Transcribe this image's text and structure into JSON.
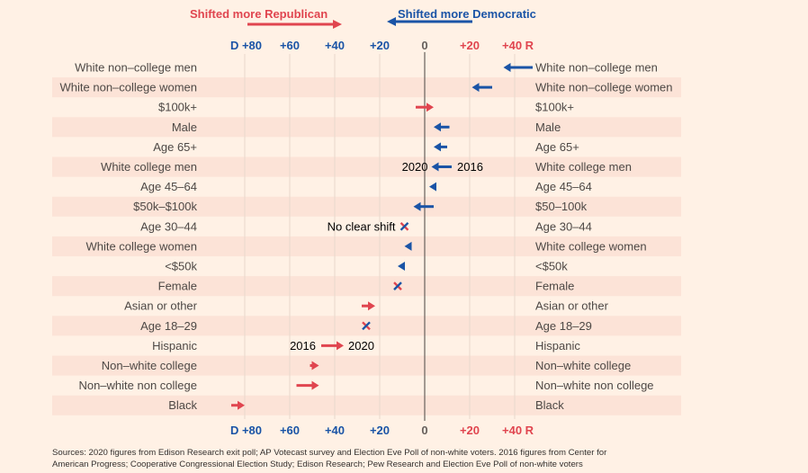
{
  "chart_data": {
    "type": "arrow-dot",
    "title": "",
    "header": {
      "republican_label": "Shifted more Republican",
      "democratic_label": "Shifted more Democratic"
    },
    "x_axis": {
      "range": [
        -90,
        45
      ],
      "ticks": [
        {
          "value": -80,
          "label": "D +80",
          "side": "D"
        },
        {
          "value": -60,
          "label": "+60",
          "side": "D"
        },
        {
          "value": -40,
          "label": "+40",
          "side": "D"
        },
        {
          "value": -20,
          "label": "+20",
          "side": "D"
        },
        {
          "value": 0,
          "label": "0",
          "side": "zero"
        },
        {
          "value": 20,
          "label": "+20",
          "side": "R"
        },
        {
          "value": 40,
          "label": "+40 R",
          "side": "R"
        }
      ],
      "note": "Negative = Democratic margin, positive = Republican margin"
    },
    "series_labels": {
      "from": "2016",
      "to": "2020"
    },
    "annotations": {
      "no_clear_shift": "No clear shift",
      "year_2016": "2016",
      "year_2020": "2020"
    },
    "rows": [
      {
        "label_left": "White non–college men",
        "label_right": "White non–college men",
        "v2016": 48,
        "v2020": 35,
        "shift": "D"
      },
      {
        "label_left": "White non–college women",
        "label_right": "White non–college women",
        "v2016": 30,
        "v2020": 21,
        "shift": "D"
      },
      {
        "label_left": "$100k+",
        "label_right": "$100k+",
        "v2016": -4,
        "v2020": 4,
        "shift": "R"
      },
      {
        "label_left": "Male",
        "label_right": "Male",
        "v2016": 11,
        "v2020": 4,
        "shift": "D"
      },
      {
        "label_left": "Age 65+",
        "label_right": "Age 65+",
        "v2016": 10,
        "v2020": 4,
        "shift": "D"
      },
      {
        "label_left": "White college men",
        "label_right": "White college men",
        "v2016": 12,
        "v2020": 3,
        "shift": "D"
      },
      {
        "label_left": "Age 45–64",
        "label_right": "Age 45–64",
        "v2016": 5,
        "v2020": 2,
        "shift": "D"
      },
      {
        "label_left": "$50k–$100k",
        "label_right": "$50–100k",
        "v2016": 4,
        "v2020": -5,
        "shift": "D"
      },
      {
        "label_left": "Age 30–44",
        "label_right": "Age 30–44",
        "v2016": -9,
        "v2020": -9,
        "shift": "none"
      },
      {
        "label_left": "White college women",
        "label_right": "White college women",
        "v2016": -6,
        "v2020": -9,
        "shift": "D"
      },
      {
        "label_left": "<$50k",
        "label_right": "<$50k",
        "v2016": -9,
        "v2020": -12,
        "shift": "D"
      },
      {
        "label_left": "Female",
        "label_right": "Female",
        "v2016": -12,
        "v2020": -12,
        "shift": "none"
      },
      {
        "label_left": "Asian or other",
        "label_right": "Asian or other",
        "v2016": -28,
        "v2020": -22,
        "shift": "R"
      },
      {
        "label_left": "Age 18–29",
        "label_right": "Age 18–29",
        "v2016": -26,
        "v2020": -26,
        "shift": "none"
      },
      {
        "label_left": "Hispanic",
        "label_right": "Hispanic",
        "v2016": -46,
        "v2020": -36,
        "shift": "R"
      },
      {
        "label_left": "Non–white college",
        "label_right": "Non–white college",
        "v2016": -51,
        "v2020": -47,
        "shift": "R"
      },
      {
        "label_left": "Non–white non college",
        "label_right": "Non–white non college",
        "v2016": -57,
        "v2020": -47,
        "shift": "R"
      },
      {
        "label_left": "Black",
        "label_right": "Black",
        "v2016": -86,
        "v2020": -80,
        "shift": "R"
      }
    ],
    "colors": {
      "republican": "#e0454f",
      "democratic": "#1a54a6",
      "zero": "#66605c",
      "background": "#fff1e5",
      "stripe": "#fce3d7",
      "grid": "#e8d8cc"
    }
  },
  "footer": {
    "sources_line1": "Sources: 2020 figures from Edison Research exit poll; AP Votecast survey and Election Eve Poll of non-white voters. 2016 figures from Center for",
    "sources_line2": "American Progress; Cooperative Congressional Election Study; Edison Research; Pew Research and Election Eve Poll of non-white voters"
  }
}
